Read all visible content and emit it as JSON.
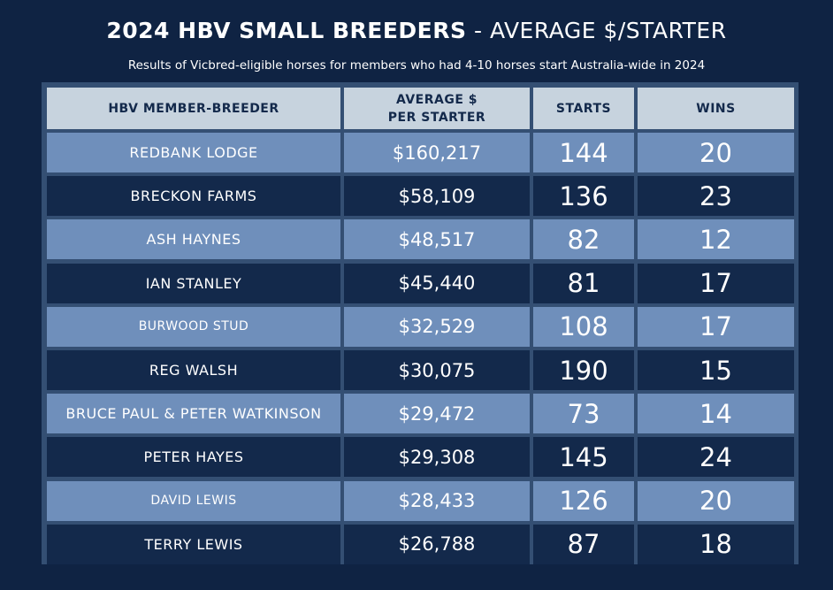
{
  "title_bold": "2024 HBV SMALL BREEDERS",
  "title_rest": " - AVERAGE $/STARTER",
  "subtitle": "Results of Vicbred-eligible horses for members who had 4-10 horses start Australia-wide in 2024",
  "colors": {
    "background": "#0f2343",
    "header_bg": "#c7d3de",
    "row_light": "#6f8fbb",
    "row_dark": "#13294b",
    "frame": "#344f73"
  },
  "chart_data": {
    "type": "table",
    "title": "2024 HBV SMALL BREEDERS - AVERAGE $/STARTER",
    "columns": [
      "HBV MEMBER-BREEDER",
      "AVERAGE $ PER STARTER",
      "STARTS",
      "WINS"
    ],
    "rows": [
      {
        "breeder": "REDBANK LODGE",
        "avg": "$160,217",
        "starts": 144,
        "wins": 20
      },
      {
        "breeder": "BRECKON FARMS",
        "avg": "$58,109",
        "starts": 136,
        "wins": 23
      },
      {
        "breeder": "ASH HAYNES",
        "avg": "$48,517",
        "starts": 82,
        "wins": 12
      },
      {
        "breeder": "IAN STANLEY",
        "avg": "$45,440",
        "starts": 81,
        "wins": 17
      },
      {
        "breeder": "BURWOOD STUD",
        "avg": "$32,529",
        "starts": 108,
        "wins": 17
      },
      {
        "breeder": "REG WALSH",
        "avg": "$30,075",
        "starts": 190,
        "wins": 15
      },
      {
        "breeder": "BRUCE PAUL & PETER WATKINSON",
        "avg": "$29,472",
        "starts": 73,
        "wins": 14
      },
      {
        "breeder": "PETER HAYES",
        "avg": "$29,308",
        "starts": 145,
        "wins": 24
      },
      {
        "breeder": "DAVID LEWIS",
        "avg": "$28,433",
        "starts": 126,
        "wins": 20
      },
      {
        "breeder": "TERRY LEWIS",
        "avg": "$26,788",
        "starts": 87,
        "wins": 18
      }
    ]
  },
  "header": {
    "col1": "HBV MEMBER-BREEDER",
    "col2_line1": "AVERAGE $",
    "col2_line2": "PER STARTER",
    "col3": "STARTS",
    "col4": "WINS"
  }
}
